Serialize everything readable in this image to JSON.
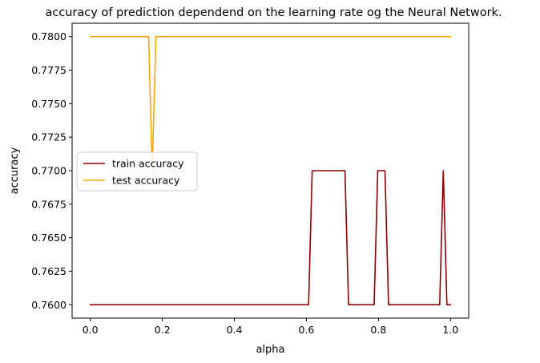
{
  "chart_data": {
    "type": "line",
    "title": "accuracy of prediction dependend on the learning rate og the Neural Network.",
    "xlabel": "alpha",
    "ylabel": "accuracy",
    "xlim": [
      -0.0505,
      1.0505
    ],
    "ylim": [
      0.759,
      0.781
    ],
    "xticks": [
      0.0,
      0.2,
      0.4,
      0.6,
      0.8,
      1.0
    ],
    "xtick_labels": [
      "0.0",
      "0.2",
      "0.4",
      "0.6",
      "0.8",
      "1.0"
    ],
    "yticks": [
      0.76,
      0.7625,
      0.765,
      0.7675,
      0.77,
      0.7725,
      0.775,
      0.7775,
      0.78
    ],
    "ytick_labels": [
      "0.7600",
      "0.7625",
      "0.7650",
      "0.7675",
      "0.7700",
      "0.7725",
      "0.7750",
      "0.7775",
      "0.7800"
    ],
    "grid": false,
    "legend_position": "center-left",
    "series": [
      {
        "name": "train accuracy",
        "color": "#8b0000",
        "x": [
          0.0,
          0.606,
          0.616,
          0.707,
          0.717,
          0.788,
          0.798,
          0.818,
          0.828,
          0.97,
          0.98,
          0.99,
          1.0
        ],
        "y": [
          0.76,
          0.76,
          0.77,
          0.77,
          0.76,
          0.76,
          0.77,
          0.77,
          0.76,
          0.76,
          0.77,
          0.76,
          0.76
        ]
      },
      {
        "name": "test accuracy",
        "color": "#ffa500",
        "x": [
          0.0,
          0.162,
          0.172,
          0.182,
          1.0
        ],
        "y": [
          0.78,
          0.78,
          0.77,
          0.78,
          0.78
        ]
      }
    ]
  }
}
